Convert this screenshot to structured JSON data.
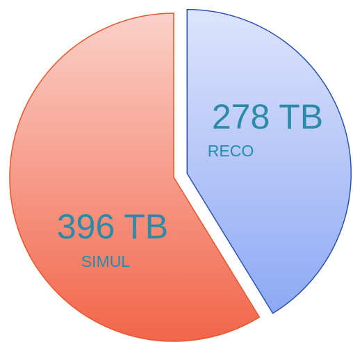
{
  "chart_data": {
    "type": "pie",
    "categories": [
      "RECO",
      "SIMUL"
    ],
    "values": [
      278,
      396
    ],
    "value_labels": [
      "278 TB",
      "396 TB"
    ],
    "colors": [
      "#8ea8f4",
      "#f2654a"
    ],
    "edge_colors": [
      "#2b52b3",
      "#e8552a"
    ]
  }
}
